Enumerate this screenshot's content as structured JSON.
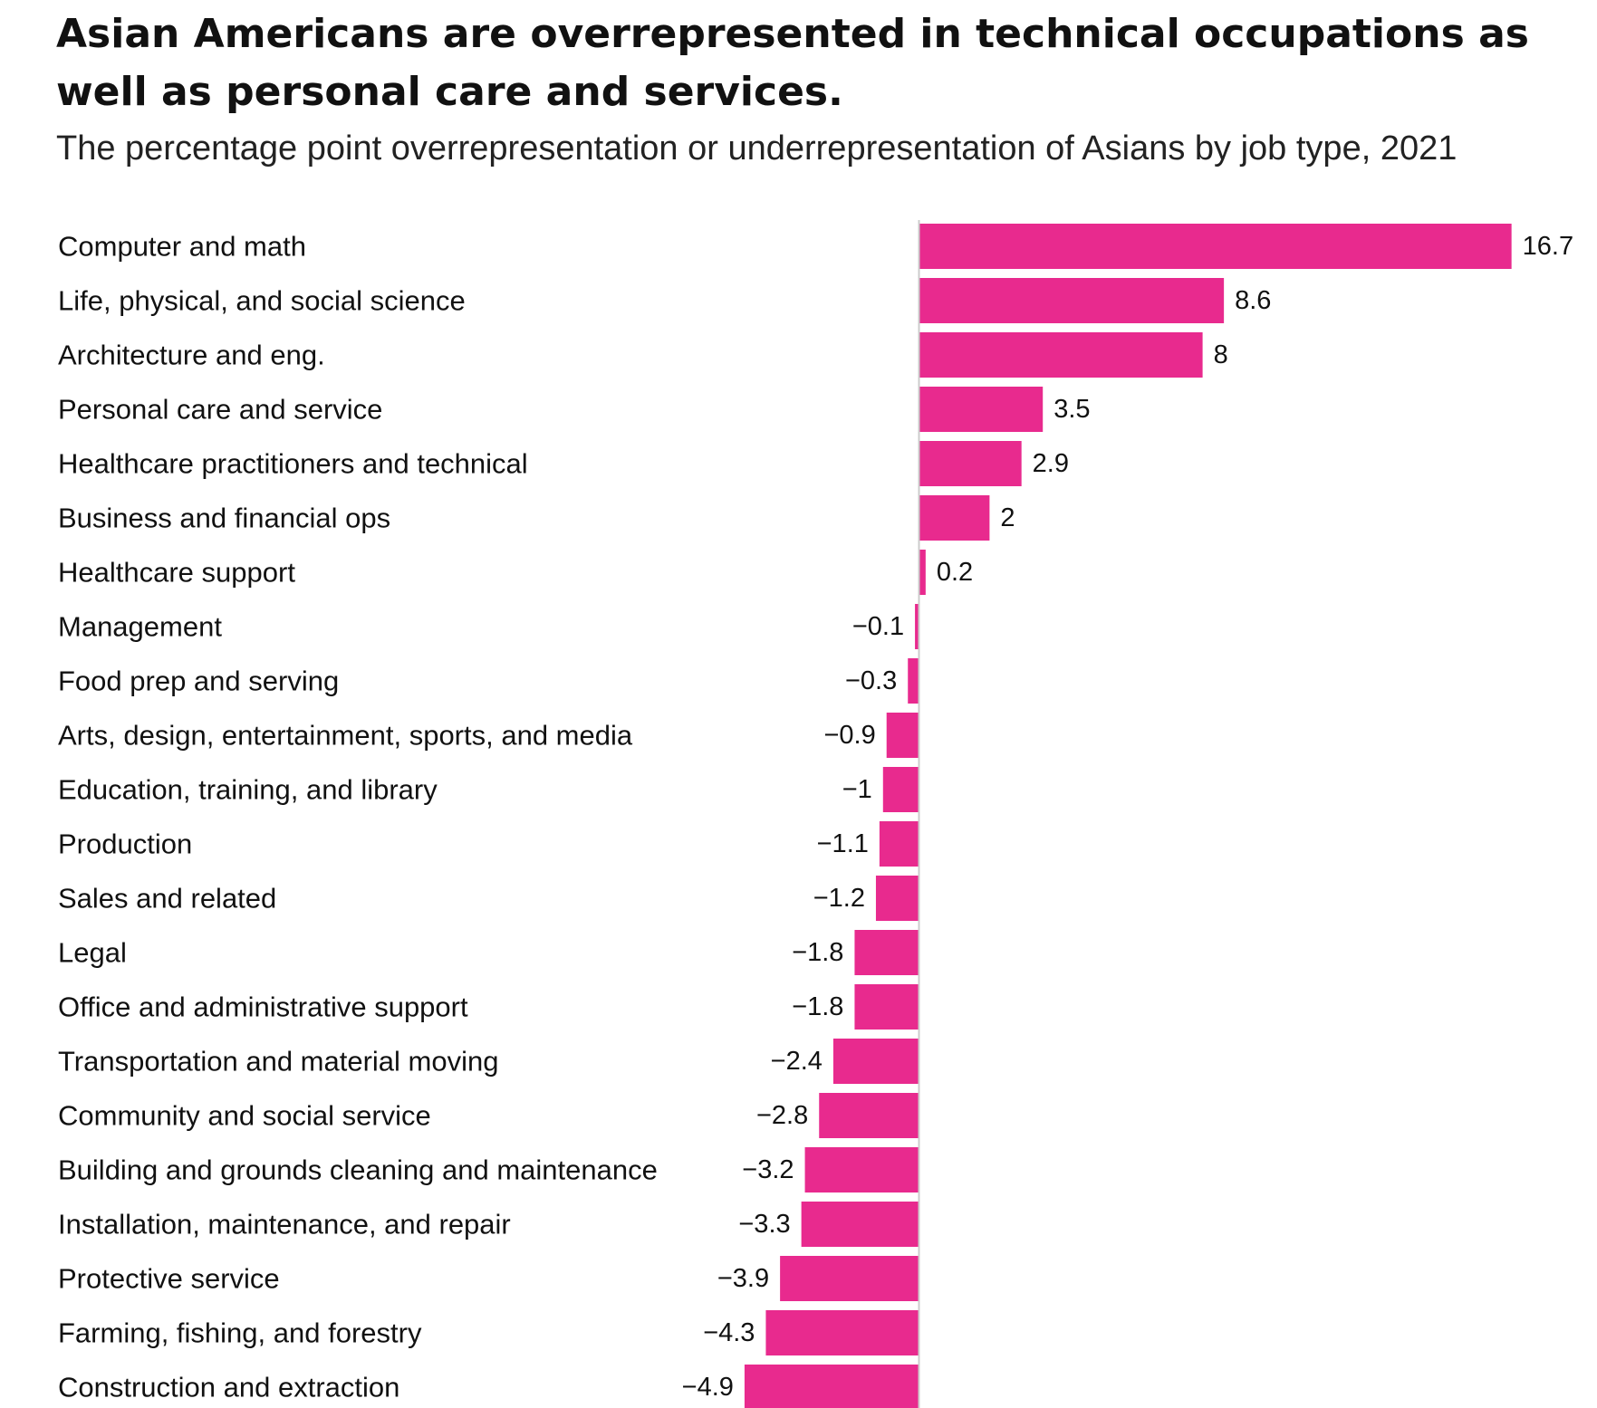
{
  "header": {
    "title": "Asian Americans are overrepresented in technical occupations as well as personal care and services.",
    "subtitle": "The percentage point overrepresentation or underrepresentation of Asians by job type, 2021"
  },
  "colors": {
    "bar": "#e82a8e",
    "zero_line": "#cccccc",
    "text": "#111111"
  },
  "chart_data": {
    "type": "bar",
    "orientation": "horizontal",
    "title": "Asian Americans are overrepresented in technical occupations as well as personal care and services.",
    "subtitle": "The percentage point overrepresentation or underrepresentation of Asians by job type, 2021",
    "categories": [
      "Computer and math",
      "Life, physical, and social science",
      "Architecture and eng.",
      "Personal care and service",
      "Healthcare practitioners and technical",
      "Business and financial ops",
      "Healthcare support",
      "Management",
      "Food prep and serving",
      "Arts, design, entertainment, sports, and media",
      "Education, training, and library",
      "Production",
      "Sales and related",
      "Legal",
      "Office and administrative support",
      "Transportation and material moving",
      "Community and social service",
      "Building and grounds cleaning and maintenance",
      "Installation, maintenance, and repair",
      "Protective service",
      "Farming, fishing, and forestry",
      "Construction and extraction"
    ],
    "values": [
      16.7,
      8.6,
      8,
      3.5,
      2.9,
      2,
      0.2,
      -0.1,
      -0.3,
      -0.9,
      -1,
      -1.1,
      -1.2,
      -1.8,
      -1.8,
      -2.4,
      -2.8,
      -3.2,
      -3.3,
      -3.9,
      -4.3,
      -4.9
    ],
    "value_labels": [
      "16.7",
      "8.6",
      "8",
      "3.5",
      "2.9",
      "2",
      "0.2",
      "−0.1",
      "−0.3",
      "−0.9",
      "−1",
      "−1.1",
      "−1.2",
      "−1.8",
      "−1.8",
      "−2.4",
      "−2.8",
      "−3.2",
      "−3.3",
      "−3.9",
      "−4.3",
      "−4.9"
    ],
    "xlim": [
      -4.9,
      16.7
    ],
    "grid": false,
    "legend": "none"
  }
}
